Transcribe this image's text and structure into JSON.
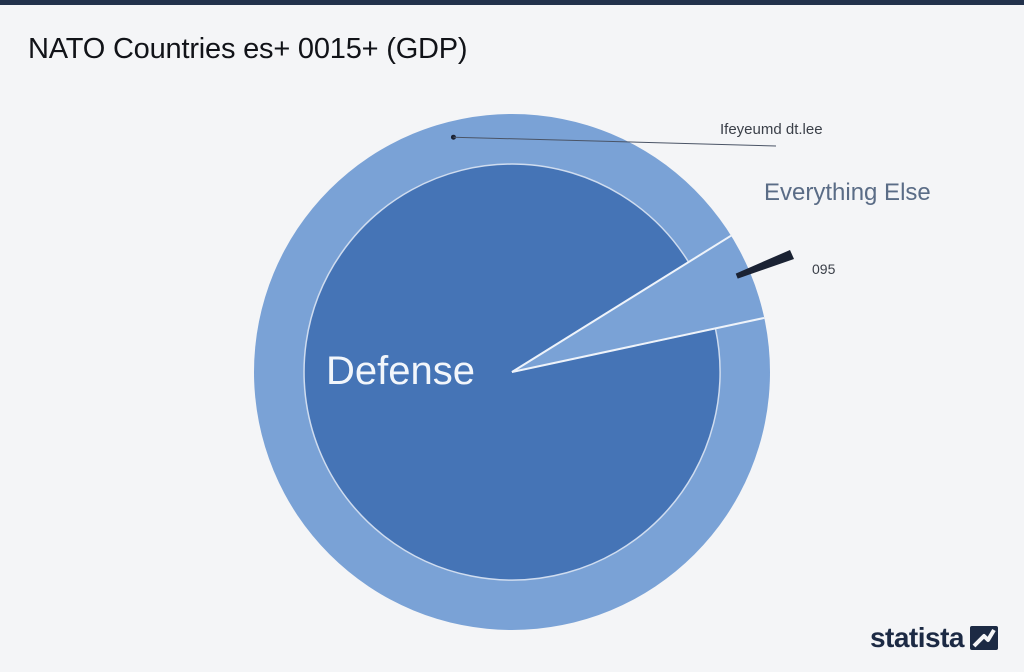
{
  "header": {
    "title": "NATO Countries es+ 0015+ (GDP)"
  },
  "chart_data": {
    "type": "pie",
    "title": "NATO Countries es+ 0015+ (GDP)",
    "slices": [
      {
        "label": "Defense",
        "value": 94.5,
        "color": "#4574b6"
      },
      {
        "label": "Everything Else",
        "value": 5.5,
        "color": "#7aa2d6"
      }
    ],
    "annotations": {
      "outer_label": "Ifeyeumd dt.lee",
      "percent_label": "095"
    },
    "colors": {
      "inner_disc": "#4574b6",
      "outer_ring": "#7aa2d6",
      "leader_line": "#1a2233"
    }
  },
  "branding": {
    "logo_text": "statista",
    "logo_icon": "statista-logo-icon"
  }
}
